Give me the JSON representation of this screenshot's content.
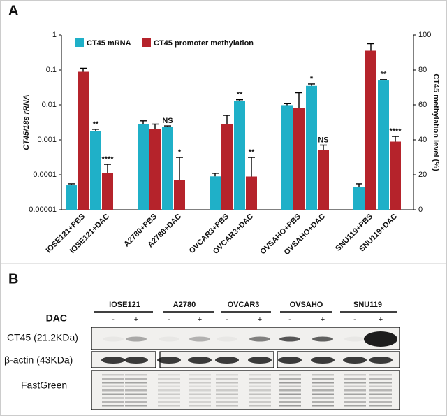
{
  "panel_labels": [
    "A",
    "B"
  ],
  "chart_data": {
    "type": "bar",
    "ylabel": "CT45/18s rRNA",
    "y2label": "CT45 methylation level (%)",
    "categories": [
      "IOSE121+PBS",
      "IOSE121+DAC",
      "A2780+PBS",
      "A2780+DAC",
      "OVCAR3+PBS",
      "OVCAR3+DAC",
      "OVSAHO+PBS",
      "OVSAHO+DAC",
      "SNU119+PBS",
      "SNU119+DAC"
    ],
    "series": [
      {
        "name": "CT45 mRNA",
        "color": "#1fb0c8",
        "values": [
          5e-05,
          0.0018,
          0.0028,
          0.0023,
          9e-05,
          0.013,
          0.0098,
          0.035,
          4.5e-05,
          0.05
        ],
        "errors": [
          5e-06,
          0.0002,
          0.0007,
          0.0002,
          2e-05,
          0.001,
          0.001,
          0.005,
          1e-05,
          0.003
        ],
        "sig": [
          null,
          "**",
          null,
          "NS",
          null,
          "**",
          null,
          "*",
          null,
          "**"
        ]
      },
      {
        "name": "CT45 promoter methylation",
        "color": "#b5232b",
        "axis": "y2",
        "values": [
          79,
          21,
          46,
          17,
          49,
          19,
          58,
          34,
          91,
          39
        ],
        "errors": [
          2,
          5,
          3,
          13,
          5,
          11,
          9,
          3,
          4,
          3
        ],
        "sig": [
          null,
          "****",
          null,
          "*",
          null,
          "**",
          null,
          "NS",
          null,
          "****"
        ]
      }
    ],
    "log_y": true,
    "ylim": [
      1e-05,
      1
    ],
    "yticks": [
      1e-05,
      0.0001,
      0.001,
      0.01,
      0.1,
      1
    ],
    "y2lim": [
      0,
      100
    ],
    "y2ticks": [
      0,
      20,
      40,
      60,
      80,
      100
    ]
  },
  "blot": {
    "cell_lines": [
      "IOSE121",
      "A2780",
      "OVCAR3",
      "OVSAHO",
      "SNU119"
    ],
    "treatment_label": "DAC",
    "treatments": [
      "-",
      "+"
    ],
    "rows": [
      "CT45 (21.2KDa)",
      "β-actin (43KDa)",
      "FastGreen"
    ]
  }
}
